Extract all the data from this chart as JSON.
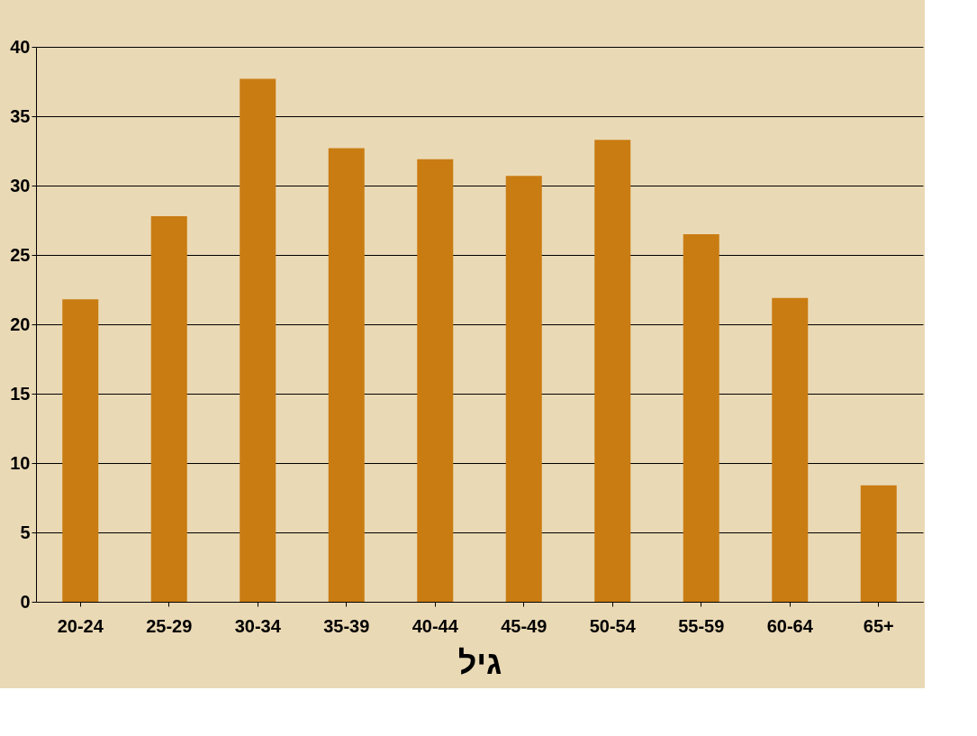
{
  "chart_data": {
    "type": "bar",
    "xlabel": "גיל",
    "categories": [
      "20-24",
      "25-29",
      "30-34",
      "35-39",
      "40-44",
      "45-49",
      "50-54",
      "55-59",
      "60-64",
      "65+"
    ],
    "values": [
      21.8,
      27.8,
      37.7,
      32.7,
      31.9,
      30.7,
      33.3,
      26.5,
      21.9,
      8.4
    ],
    "color": "#c97c12",
    "ylim": [
      0,
      40
    ],
    "yticks": [
      0,
      5,
      10,
      15,
      20,
      25,
      30,
      35,
      40
    ],
    "grid": "y"
  }
}
